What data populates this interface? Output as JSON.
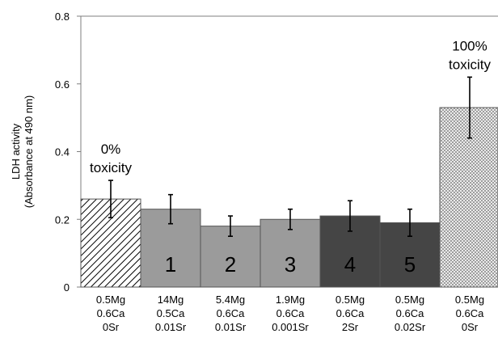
{
  "chart_data": {
    "type": "bar",
    "ylabel_lines": [
      "LDH activity",
      "(Absorbance at 490 nm)"
    ],
    "ylim": [
      0,
      0.8
    ],
    "yticks": [
      "0",
      "0.2",
      "0.4",
      "0.6",
      "0.8"
    ],
    "yticks_values": [
      0,
      0.2,
      0.4,
      0.6,
      0.8
    ],
    "categories": [
      [
        "0.5Mg",
        "0.6Ca",
        "0Sr"
      ],
      [
        "14Mg",
        "0.5Ca",
        "0.01Sr"
      ],
      [
        "5.4Mg",
        "0.6Ca",
        "0.01Sr"
      ],
      [
        "1.9Mg",
        "0.6Ca",
        "0.001Sr"
      ],
      [
        "0.5Mg",
        "0.6Ca",
        "2Sr"
      ],
      [
        "0.5Mg",
        "0.6Ca",
        "0.02Sr"
      ],
      [
        "0.5Mg",
        "0.6Ca",
        "0Sr"
      ]
    ],
    "values": [
      0.26,
      0.23,
      0.18,
      0.2,
      0.21,
      0.19,
      0.53
    ],
    "errors": [
      0.055,
      0.043,
      0.03,
      0.03,
      0.045,
      0.04,
      0.09
    ],
    "bar_labels": [
      "",
      "1",
      "2",
      "3",
      "4",
      "5",
      ""
    ],
    "bar_fills": [
      "hatch",
      "#9b9b9b",
      "#9b9b9b",
      "#9b9b9b",
      "#454545",
      "#454545",
      "crosshatch"
    ],
    "annotations": [
      {
        "bar": 0,
        "lines": [
          "0%",
          "toxicity"
        ]
      },
      {
        "bar": 6,
        "lines": [
          "100%",
          "toxicity"
        ]
      }
    ]
  }
}
